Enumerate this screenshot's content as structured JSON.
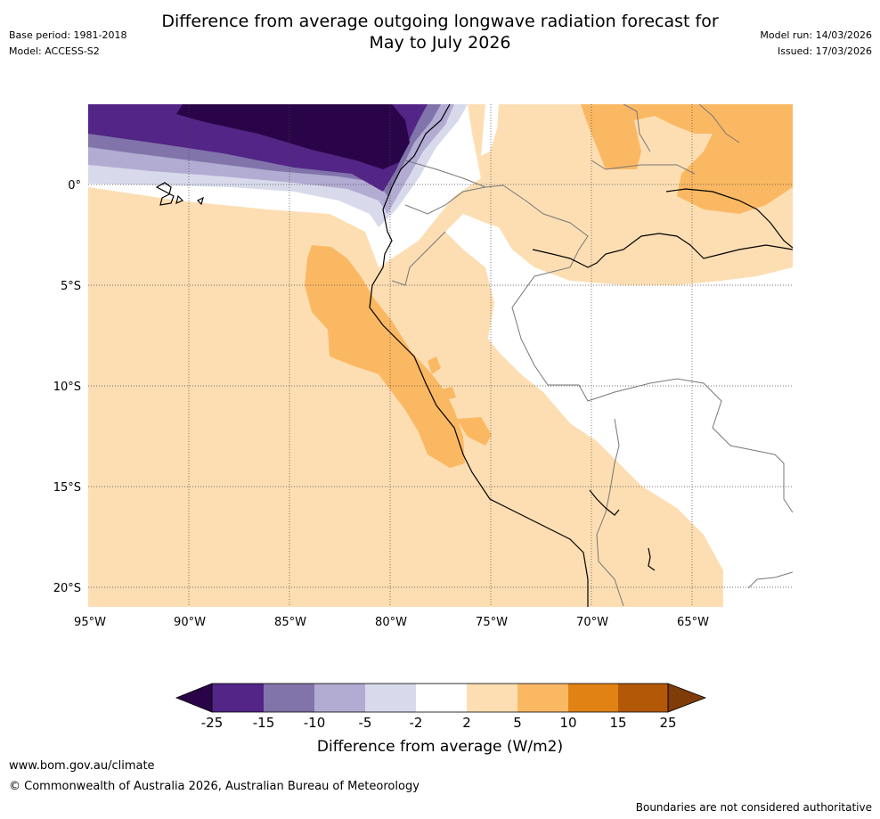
{
  "title_line1": "Difference from average outgoing longwave radiation forecast for",
  "title_line2": "May to July 2026",
  "meta_left": {
    "base_period": "Base period: 1981-2018",
    "model": "Model: ACCESS-S2"
  },
  "meta_right": {
    "model_run": "Model run: 14/03/2026",
    "issued": "Issued: 17/03/2026"
  },
  "map": {
    "lat_labels": [
      "0°",
      "5°S",
      "10°S",
      "15°S",
      "20°S"
    ],
    "lon_labels": [
      "95°W",
      "90°W",
      "85°W",
      "80°W",
      "75°W",
      "70°W",
      "65°W"
    ]
  },
  "colorbar": {
    "tick_labels": [
      "-25",
      "-15",
      "-10",
      "-5",
      "-2",
      "2",
      "5",
      "10",
      "15",
      "25"
    ],
    "colors": [
      "#2a0448",
      "#522586",
      "#8074aa",
      "#b2abd2",
      "#d8daeb",
      "#ffffff",
      "#fddeb3",
      "#fbb863",
      "#e08214",
      "#b35807",
      "#7f3b08"
    ],
    "label": "Difference from average (W/m2)"
  },
  "footer": {
    "url": "www.bom.gov.au/climate",
    "copyright": "© Commonwealth of Australia 2026, Australian Bureau of Meteorology",
    "note": "Boundaries are not considered authoritative"
  }
}
